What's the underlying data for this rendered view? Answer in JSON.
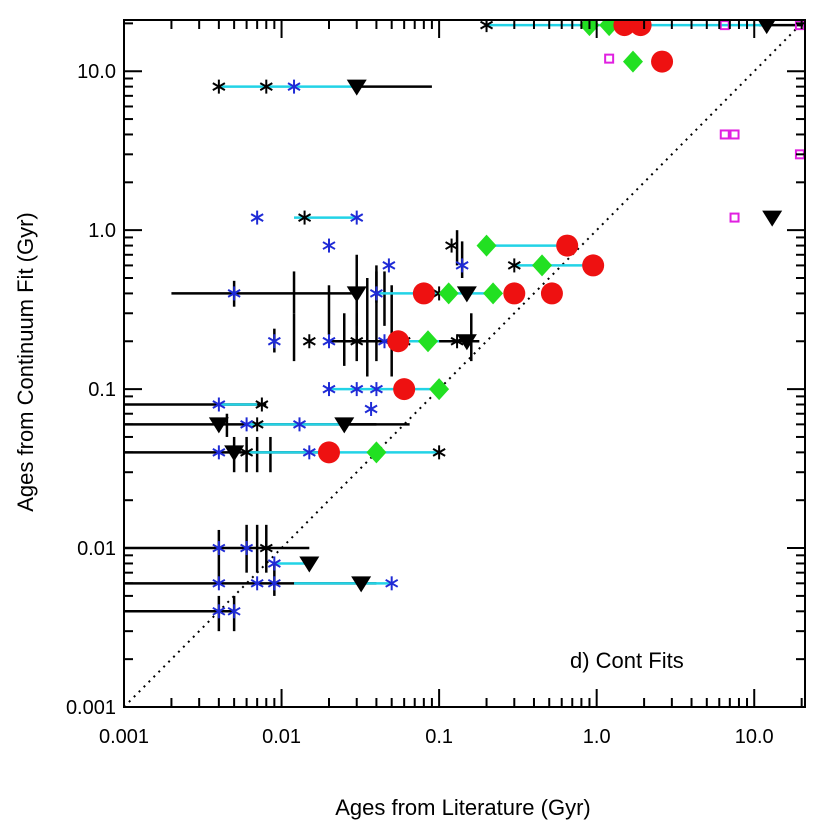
{
  "chart_data": {
    "type": "scatter",
    "title": "",
    "xlabel": "Ages from Literature (Gyr)",
    "ylabel": "Ages from Continuum Fit (Gyr)",
    "xscale": "log",
    "yscale": "log",
    "xlim": [
      0.001,
      21
    ],
    "ylim": [
      0.001,
      21
    ],
    "x_ticks": [
      {
        "value": 0.001,
        "label": "0.001"
      },
      {
        "value": 0.01,
        "label": "0.01"
      },
      {
        "value": 0.1,
        "label": "0.1"
      },
      {
        "value": 1.0,
        "label": "1.0"
      },
      {
        "value": 10.0,
        "label": "10.0"
      }
    ],
    "y_ticks": [
      {
        "value": 0.001,
        "label": "0.001"
      },
      {
        "value": 0.01,
        "label": "0.01"
      },
      {
        "value": 0.1,
        "label": "0.1"
      },
      {
        "value": 1.0,
        "label": "1.0"
      },
      {
        "value": 10.0,
        "label": "10.0"
      }
    ],
    "annotation": "d) Cont Fits",
    "identity_line": true,
    "colors": {
      "black": "#000000",
      "blue": "#1f2bd6",
      "cyan": "#22d3e6",
      "red": "#ee1111",
      "green": "#22e022",
      "magenta": "#e020e0"
    },
    "connectors": [
      {
        "y": 19.5,
        "x1": 0.2,
        "x2": 12.0
      },
      {
        "y": 8.0,
        "x1": 0.004,
        "x2": 0.03
      },
      {
        "y": 1.2,
        "x1": 0.012,
        "x2": 0.03
      },
      {
        "y": 0.8,
        "x1": 0.2,
        "x2": 0.65
      },
      {
        "y": 0.6,
        "x1": 0.3,
        "x2": 0.95
      },
      {
        "y": 0.4,
        "x1": 0.04,
        "x2": 0.2
      },
      {
        "y": 0.2,
        "x1": 0.05,
        "x2": 0.1
      },
      {
        "y": 0.1,
        "x1": 0.02,
        "x2": 0.1
      },
      {
        "y": 0.08,
        "x1": 0.004,
        "x2": 0.007
      },
      {
        "y": 0.06,
        "x1": 0.006,
        "x2": 0.025
      },
      {
        "y": 0.04,
        "x1": 0.006,
        "x2": 0.1
      },
      {
        "y": 0.008,
        "x1": 0.009,
        "x2": 0.015
      },
      {
        "y": 0.006,
        "x1": 0.012,
        "x2": 0.05
      }
    ],
    "series": [
      {
        "name": "black_triangles",
        "marker": "triangle-down",
        "color": "black",
        "points": [
          {
            "x": 12.0,
            "y": 19.5,
            "xerr": [
              1.3,
              18.0
            ]
          },
          {
            "x": 0.03,
            "y": 8.0,
            "xerr": [
              0.0,
              0.06
            ]
          },
          {
            "x": 13.0,
            "y": 1.2
          },
          {
            "x": 0.03,
            "y": 0.4,
            "xerr": [
              0.002,
              0.0
            ]
          },
          {
            "x": 0.15,
            "y": 0.4
          },
          {
            "x": 0.15,
            "y": 0.2
          },
          {
            "x": 0.025,
            "y": 0.06,
            "xerr": [
              0.0,
              0.04
            ]
          },
          {
            "x": 0.004,
            "y": 0.06
          },
          {
            "x": 0.005,
            "y": 0.04
          },
          {
            "x": 0.015,
            "y": 0.008
          },
          {
            "x": 0.032,
            "y": 0.006
          }
        ]
      },
      {
        "name": "black_asterisks",
        "marker": "asterisk",
        "color": "black",
        "points": [
          {
            "x": 0.2,
            "y": 19.5
          },
          {
            "x": 0.004,
            "y": 8.0
          },
          {
            "x": 0.008,
            "y": 8.0
          },
          {
            "x": 0.014,
            "y": 1.2
          },
          {
            "x": 0.12,
            "y": 0.8
          },
          {
            "x": 0.3,
            "y": 0.6
          },
          {
            "x": 0.1,
            "y": 0.4
          },
          {
            "x": 0.015,
            "y": 0.2
          },
          {
            "x": 0.03,
            "y": 0.2
          },
          {
            "x": 0.06,
            "y": 0.2
          },
          {
            "x": 0.13,
            "y": 0.2
          },
          {
            "x": 0.0075,
            "y": 0.08
          },
          {
            "x": 0.007,
            "y": 0.06
          },
          {
            "x": 0.006,
            "y": 0.04
          },
          {
            "x": 0.1,
            "y": 0.04
          },
          {
            "x": 0.008,
            "y": 0.01
          }
        ]
      },
      {
        "name": "blue_asterisks",
        "marker": "asterisk",
        "color": "blue",
        "points": [
          {
            "x": 0.012,
            "y": 8.0
          },
          {
            "x": 0.007,
            "y": 1.2
          },
          {
            "x": 0.03,
            "y": 1.2
          },
          {
            "x": 0.02,
            "y": 0.8
          },
          {
            "x": 0.048,
            "y": 0.6
          },
          {
            "x": 0.14,
            "y": 0.6
          },
          {
            "x": 0.005,
            "y": 0.4
          },
          {
            "x": 0.04,
            "y": 0.4
          },
          {
            "x": 0.009,
            "y": 0.2
          },
          {
            "x": 0.02,
            "y": 0.2
          },
          {
            "x": 0.045,
            "y": 0.2
          },
          {
            "x": 0.02,
            "y": 0.1
          },
          {
            "x": 0.03,
            "y": 0.1
          },
          {
            "x": 0.04,
            "y": 0.1
          },
          {
            "x": 0.037,
            "y": 0.075
          },
          {
            "x": 0.004,
            "y": 0.08
          },
          {
            "x": 0.006,
            "y": 0.06
          },
          {
            "x": 0.013,
            "y": 0.06
          },
          {
            "x": 0.004,
            "y": 0.04
          },
          {
            "x": 0.015,
            "y": 0.04
          },
          {
            "x": 0.004,
            "y": 0.01
          },
          {
            "x": 0.006,
            "y": 0.01
          },
          {
            "x": 0.009,
            "y": 0.008
          },
          {
            "x": 0.004,
            "y": 0.006
          },
          {
            "x": 0.007,
            "y": 0.006
          },
          {
            "x": 0.009,
            "y": 0.006
          },
          {
            "x": 0.05,
            "y": 0.006
          },
          {
            "x": 0.004,
            "y": 0.004
          },
          {
            "x": 0.005,
            "y": 0.004
          }
        ]
      },
      {
        "name": "red_circles",
        "marker": "circle",
        "color": "red",
        "points": [
          {
            "x": 1.5,
            "y": 19.5
          },
          {
            "x": 1.9,
            "y": 19.5
          },
          {
            "x": 2.6,
            "y": 11.5
          },
          {
            "x": 0.65,
            "y": 0.8
          },
          {
            "x": 0.95,
            "y": 0.6
          },
          {
            "x": 0.08,
            "y": 0.4
          },
          {
            "x": 0.3,
            "y": 0.4
          },
          {
            "x": 0.52,
            "y": 0.4
          },
          {
            "x": 0.055,
            "y": 0.2
          },
          {
            "x": 0.06,
            "y": 0.1
          },
          {
            "x": 0.02,
            "y": 0.04
          }
        ]
      },
      {
        "name": "green_diamonds",
        "marker": "diamond",
        "color": "green",
        "points": [
          {
            "x": 0.9,
            "y": 19.5
          },
          {
            "x": 1.2,
            "y": 19.5
          },
          {
            "x": 1.7,
            "y": 11.5
          },
          {
            "x": 0.2,
            "y": 0.8
          },
          {
            "x": 0.45,
            "y": 0.6
          },
          {
            "x": 0.115,
            "y": 0.4
          },
          {
            "x": 0.22,
            "y": 0.4
          },
          {
            "x": 0.085,
            "y": 0.2
          },
          {
            "x": 0.1,
            "y": 0.1
          },
          {
            "x": 0.04,
            "y": 0.04
          }
        ]
      },
      {
        "name": "magenta_squares",
        "marker": "square-open",
        "color": "magenta",
        "points": [
          {
            "x": 6.5,
            "y": 19.5
          },
          {
            "x": 19.5,
            "y": 19.5
          },
          {
            "x": 1.2,
            "y": 12.0
          },
          {
            "x": 6.5,
            "y": 4.0
          },
          {
            "x": 7.5,
            "y": 4.0
          },
          {
            "x": 19.5,
            "y": 3.0
          },
          {
            "x": 7.5,
            "y": 1.2
          }
        ]
      }
    ],
    "vertical_ranges": [
      {
        "x": 0.03,
        "y1": 0.25,
        "y2": 0.7
      },
      {
        "x": 0.035,
        "y1": 0.12,
        "y2": 0.5
      },
      {
        "x": 0.04,
        "y1": 0.15,
        "y2": 0.6
      },
      {
        "x": 0.045,
        "y1": 0.25,
        "y2": 0.55
      },
      {
        "x": 0.05,
        "y1": 0.12,
        "y2": 0.45
      },
      {
        "x": 0.012,
        "y1": 0.3,
        "y2": 0.55
      },
      {
        "x": 0.02,
        "y1": 0.22,
        "y2": 0.45
      },
      {
        "x": 0.025,
        "y1": 0.14,
        "y2": 0.3
      },
      {
        "x": 0.012,
        "y1": 0.15,
        "y2": 0.3
      },
      {
        "x": 0.03,
        "y1": 0.15,
        "y2": 0.3
      },
      {
        "x": 0.04,
        "y1": 0.35,
        "y2": 0.55
      },
      {
        "x": 0.13,
        "y1": 0.6,
        "y2": 1.0
      },
      {
        "x": 0.14,
        "y1": 0.5,
        "y2": 0.85
      },
      {
        "x": 0.16,
        "y1": 0.15,
        "y2": 0.3
      },
      {
        "x": 0.004,
        "y1": 0.006,
        "y2": 0.013
      },
      {
        "x": 0.004,
        "y1": 0.003,
        "y2": 0.005
      },
      {
        "x": 0.005,
        "y1": 0.003,
        "y2": 0.005
      },
      {
        "x": 0.006,
        "y1": 0.007,
        "y2": 0.014
      },
      {
        "x": 0.007,
        "y1": 0.007,
        "y2": 0.014
      },
      {
        "x": 0.008,
        "y1": 0.007,
        "y2": 0.014
      },
      {
        "x": 0.009,
        "y1": 0.005,
        "y2": 0.008
      },
      {
        "x": 0.0045,
        "y1": 0.05,
        "y2": 0.07
      },
      {
        "x": 0.005,
        "y1": 0.03,
        "y2": 0.05
      },
      {
        "x": 0.006,
        "y1": 0.03,
        "y2": 0.05
      },
      {
        "x": 0.007,
        "y1": 0.03,
        "y2": 0.05
      },
      {
        "x": 0.0085,
        "y1": 0.03,
        "y2": 0.05
      },
      {
        "x": 0.009,
        "y1": 0.17,
        "y2": 0.24
      },
      {
        "x": 0.005,
        "y1": 0.33,
        "y2": 0.48
      }
    ],
    "horizontal_errbars": [
      {
        "y": 0.4,
        "x1": 0.002,
        "x2": 0.03
      },
      {
        "y": 0.2,
        "x1": 0.02,
        "x2": 0.18
      },
      {
        "y": 0.08,
        "x1": 0.001,
        "x2": 0.008
      },
      {
        "y": 0.06,
        "x1": 0.001,
        "x2": 0.04
      },
      {
        "y": 0.04,
        "x1": 0.001,
        "x2": 0.02
      },
      {
        "y": 0.01,
        "x1": 0.001,
        "x2": 0.015
      },
      {
        "y": 0.006,
        "x1": 0.001,
        "x2": 0.04
      },
      {
        "y": 0.004,
        "x1": 0.001,
        "x2": 0.005
      }
    ]
  }
}
